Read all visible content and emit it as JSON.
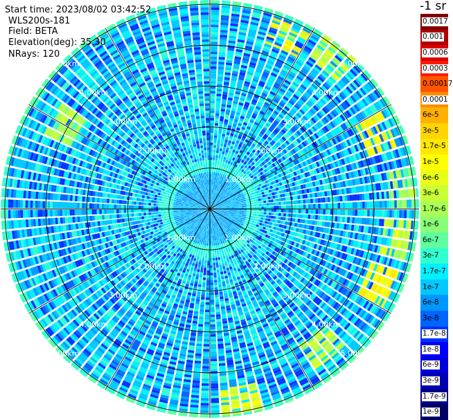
{
  "header": {
    "start_time": "Start time: 2023/08/02 03:42:52",
    "device": "WLS200s-181",
    "field": "Field: BETA",
    "elevation": "Elevation(deg): 35.30",
    "nrays": "NRays: 120"
  },
  "chart_data": {
    "type": "ppi",
    "title": "",
    "field": "BETA",
    "elevation_deg": 35.3,
    "n_rays": 120,
    "range_rings_km": [
      1.0,
      2.0,
      3.0,
      4.0,
      5.0
    ],
    "ring_label": "{v}km",
    "ring_label_precision": 2,
    "max_range_km": 5.1,
    "spokes_deg": [
      0,
      30,
      60,
      90,
      120,
      150,
      180,
      210,
      240,
      270,
      300,
      330
    ],
    "gate_size_km": 0.06,
    "hotspots": [
      {
        "az_deg": 25,
        "range_km": 4.6,
        "value": 1e-05
      },
      {
        "az_deg": 40,
        "range_km": 4.75,
        "value": 3e-06
      },
      {
        "az_deg": 65,
        "range_km": 4.45,
        "value": 1e-05
      },
      {
        "az_deg": 85,
        "range_km": 4.7,
        "value": 1.7e-06
      },
      {
        "az_deg": 100,
        "range_km": 4.6,
        "value": 3e-06
      },
      {
        "az_deg": 115,
        "range_km": 4.5,
        "value": 1e-05
      },
      {
        "az_deg": 140,
        "range_km": 4.3,
        "value": 3e-06
      },
      {
        "az_deg": 170,
        "range_km": 4.7,
        "value": 6e-06
      },
      {
        "az_deg": 300,
        "range_km": 4.1,
        "value": 1.7e-06
      }
    ],
    "colorbar": {
      "title": "-1 sr",
      "labels": [
        "0.0017",
        "0.001",
        "0.0006",
        "0.0003",
        "0.00017",
        "0.0001",
        "6e-5",
        "3e-5",
        "1.7e-5",
        "1e-5",
        "6e-6",
        "3e-6",
        "1.7e-6",
        "1e-6",
        "6e-7",
        "3e-7",
        "1.7e-7",
        "1e-7",
        "6e-8",
        "3e-8",
        "1.7e-8",
        "1e-8",
        "6e-9",
        "3e-9",
        "1.7e-9",
        "1e-9"
      ],
      "colors": [
        "#800000",
        "#b00000",
        "#dc0000",
        "#ff1a00",
        "#ff5500",
        "#ff8c00",
        "#ffb000",
        "#ffd400",
        "#ffe800",
        "#ffff00",
        "#e8ff17",
        "#c8ff37",
        "#a8ff57",
        "#88ff77",
        "#5fffa0",
        "#30ffd0",
        "#00f0ff",
        "#00c8ff",
        "#0098ff",
        "#0064ff",
        "#0032ff",
        "#0000ff",
        "#0000dc",
        "#0000b4",
        "#00008c",
        "#000064"
      ],
      "light_label_indices": [
        0,
        1,
        2,
        3,
        5,
        20,
        21,
        22,
        23,
        24,
        25
      ]
    }
  }
}
